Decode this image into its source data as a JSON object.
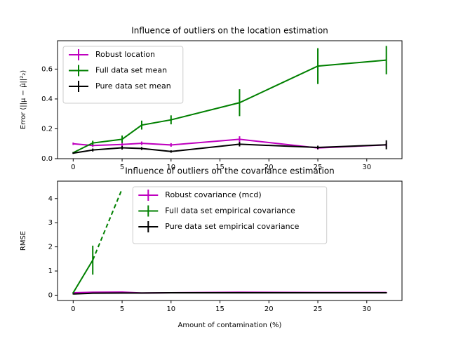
{
  "chart_data": [
    {
      "type": "line",
      "title": "Influence of outliers on the location estimation",
      "y_label": "Error (||μ − μ̂||²₂)",
      "x": [
        0,
        2,
        5,
        7,
        10,
        17,
        25,
        32
      ],
      "xlim": [
        -1.6,
        33.6
      ],
      "xticks": [
        0,
        5,
        10,
        15,
        20,
        25,
        30
      ],
      "ylim": [
        0,
        0.79
      ],
      "yticks": [
        {
          "value": 0,
          "label": "0.0"
        },
        0.2,
        0.4,
        0.6
      ],
      "legend": "upper left",
      "series": [
        {
          "name": "Robust location",
          "color": "#bf00bf",
          "values": [
            0.1,
            0.088,
            0.095,
            0.103,
            0.092,
            0.13,
            0.072,
            0.092
          ],
          "errors": [
            0.008,
            0.01,
            0.012,
            0.012,
            0.012,
            0.02,
            0.01,
            0.012
          ]
        },
        {
          "name": "Full data set mean",
          "color": "#008000",
          "values": [
            0.04,
            0.105,
            0.13,
            0.225,
            0.26,
            0.375,
            0.62,
            0.66
          ],
          "errors": [
            0.005,
            0.015,
            0.025,
            0.03,
            0.03,
            0.09,
            0.12,
            0.095
          ]
        },
        {
          "name": "Pure data set mean",
          "color": "#000000",
          "values": [
            0.037,
            0.058,
            0.073,
            0.068,
            0.048,
            0.097,
            0.075,
            0.093
          ],
          "errors": [
            0.005,
            0.01,
            0.012,
            0.01,
            0.008,
            0.015,
            0.012,
            0.03
          ]
        }
      ]
    },
    {
      "type": "line",
      "title": "Influence of outliers on the covariance estimation",
      "x_label": "Amount of contamination (%)",
      "y_label": "RMSE",
      "x": [
        0,
        2,
        5,
        7,
        10,
        17,
        25,
        32
      ],
      "xlim": [
        -1.6,
        33.6
      ],
      "xticks": [
        0,
        5,
        10,
        15,
        20,
        25,
        30
      ],
      "ylim": [
        -0.22,
        4.72
      ],
      "yticks": [
        0,
        1,
        2,
        3,
        4
      ],
      "legend": "upper center",
      "series": [
        {
          "name": "Robust covariance (mcd)",
          "color": "#bf00bf",
          "values": [
            0.1,
            0.12,
            0.13,
            0.09,
            0.1,
            0.12,
            0.11,
            0.11
          ],
          "errors": [
            0.02,
            0.02,
            0.02,
            0.02,
            0.02,
            0.02,
            0.02,
            0.02
          ]
        },
        {
          "name": "Full data set empirical covariance",
          "color": "#008000",
          "values": [
            0.1,
            1.45,
            4.4,
            null,
            null,
            null,
            null,
            null
          ],
          "errors": [
            0.02,
            0.6,
            null,
            null,
            null,
            null,
            null,
            null
          ],
          "dashed_from": 1
        },
        {
          "name": "Pure data set empirical covariance",
          "color": "#000000",
          "values": [
            0.05,
            0.08,
            0.09,
            0.09,
            0.1,
            0.1,
            0.1,
            0.1
          ],
          "errors": [
            0.02,
            0.02,
            0.02,
            0.02,
            0.02,
            0.02,
            0.02,
            0.02
          ]
        }
      ]
    }
  ]
}
